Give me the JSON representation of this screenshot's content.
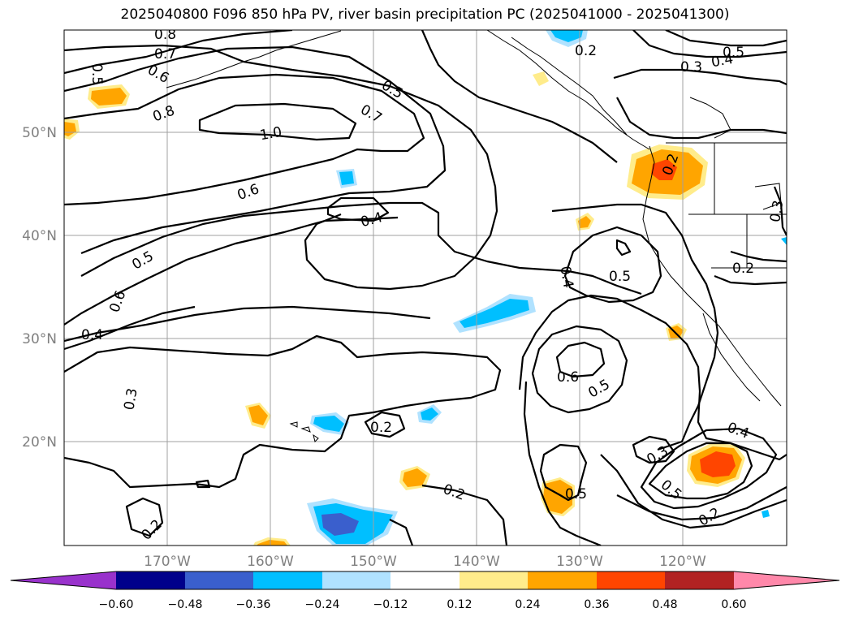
{
  "title": "2025040800 F096 850 hPa PV, river basin precipitation PC (2025041000 - 2025041300)",
  "map": {
    "lon_ticks": [
      "170°W",
      "160°W",
      "150°W",
      "140°W",
      "130°W",
      "120°W"
    ],
    "lat_ticks": [
      "50°N",
      "40°N",
      "30°N",
      "20°N"
    ],
    "contour_labels": [
      "0.8",
      "0.7",
      "0.5",
      "0.6",
      "0.8",
      "1.0",
      "0.5",
      "0.7",
      "0.6",
      "0.4",
      "0.5",
      "0.6",
      "0.4",
      "0.3",
      "0.2",
      "0.2",
      "0.2",
      "0.2",
      "0.5",
      "0.4",
      "0.3",
      "0.2",
      "0.5",
      "0.4",
      "0.5",
      "0.6",
      "0.5",
      "0.3",
      "0.4",
      "0.5",
      "0.2",
      "0.3",
      "0.2"
    ]
  },
  "colorbar": {
    "ticks": [
      "−0.60",
      "−0.48",
      "−0.36",
      "−0.24",
      "−0.12",
      "0.12",
      "0.24",
      "0.36",
      "0.48",
      "0.60"
    ],
    "colors": [
      "#9932cc",
      "#00008b",
      "#3a5fcd",
      "#00bfff",
      "#b0e2ff",
      "#ffffff",
      "#ffec8b",
      "#ffa500",
      "#ff4500",
      "#b22222",
      "#ff88aa"
    ]
  },
  "colors": {
    "grid": "#a0a0a0",
    "contour": "#000000",
    "axis_label": "#808080"
  }
}
